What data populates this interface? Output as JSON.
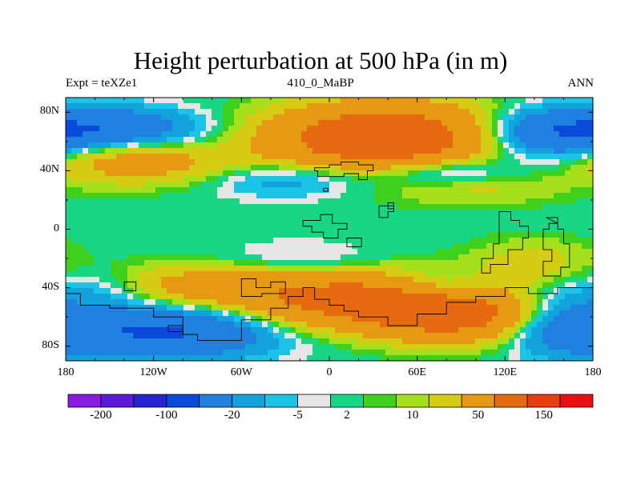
{
  "chart_data": {
    "type": "heatmap",
    "title": "Height perturbation at 500 hPa (in m)",
    "subtitle_left": "Expt = teXZe1",
    "subtitle_center": "410_0_MaBP",
    "subtitle_right": "ANN",
    "x_ticks": [
      "180",
      "120W",
      "60W",
      "0",
      "60E",
      "120E",
      "180"
    ],
    "x_tick_values": [
      -180,
      -120,
      -60,
      0,
      60,
      120,
      180
    ],
    "y_ticks": [
      "80N",
      "40N",
      "0",
      "40S",
      "80S"
    ],
    "y_tick_values": [
      80,
      40,
      0,
      -40,
      -80
    ],
    "xlim": [
      -180,
      180
    ],
    "ylim": [
      -90,
      90
    ],
    "colorbar_labels": [
      "-200",
      "-100",
      "-20",
      "-5",
      "2",
      "10",
      "50",
      "150"
    ],
    "colorbar_colors": [
      "#8a1be0",
      "#5a1ad8",
      "#2424d0",
      "#0a4ad8",
      "#1f80e0",
      "#12a3dc",
      "#1bc3e6",
      "#e6e6e6",
      "#18d684",
      "#3ed01c",
      "#a6e01c",
      "#d6cc14",
      "#e69a14",
      "#e66a10",
      "#e63e10",
      "#e81010"
    ],
    "contour_levels": [
      -200,
      -150,
      -100,
      -50,
      -20,
      -10,
      -5,
      -2,
      2,
      5,
      10,
      20,
      50,
      100,
      150,
      200
    ],
    "anomaly_field_note": "smooth wave pattern over latitude 90S-90N, longitude 180W-180E"
  }
}
